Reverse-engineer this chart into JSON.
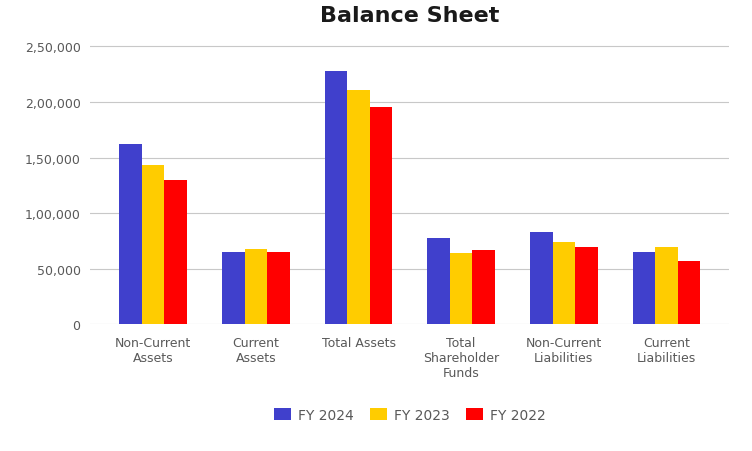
{
  "title": "Balance Sheet",
  "categories": [
    "Non-Current\nAssets",
    "Current\nAssets",
    "Total Assets",
    "Total\nShareholder\nFunds",
    "Non-Current\nLiabilities",
    "Current\nLiabilities"
  ],
  "series": {
    "FY 2024": [
      162000,
      65000,
      228000,
      78000,
      83000,
      65000
    ],
    "FY 2023": [
      143000,
      68000,
      211000,
      64000,
      74000,
      70000
    ],
    "FY 2022": [
      130000,
      65000,
      195000,
      67000,
      70000,
      57000
    ]
  },
  "colors": {
    "FY 2024": "#4040cc",
    "FY 2023": "#ffcc00",
    "FY 2022": "#ff0000"
  },
  "ylim": [
    0,
    260000
  ],
  "yticks": [
    0,
    50000,
    100000,
    150000,
    200000,
    250000
  ],
  "ytick_labels": [
    "0",
    "50,000",
    "1,00,000",
    "1,50,000",
    "2,00,000",
    "2,50,000"
  ],
  "figure_bg": "#ffffff",
  "plot_bg": "#ffffff",
  "title_fontsize": 16,
  "legend_fontsize": 10,
  "tick_fontsize": 9,
  "bar_width": 0.22,
  "grid_color": "#c8c8c8",
  "text_color": "#595959"
}
